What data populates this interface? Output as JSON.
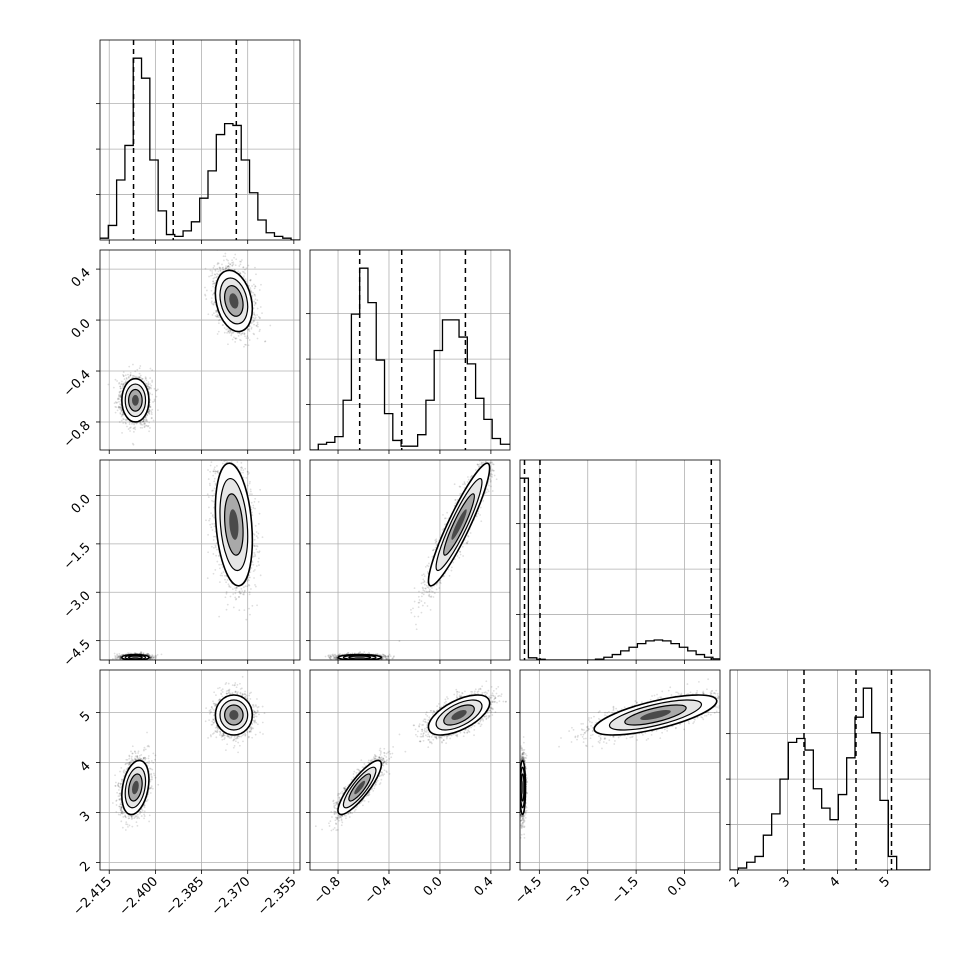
{
  "chart_data": {
    "type": "corner",
    "title": "",
    "parameters": [
      {
        "label": "",
        "range": [
          -2.418,
          -2.353
        ],
        "ticks": [
          -2.415,
          -2.4,
          -2.385,
          -2.37,
          -2.355
        ],
        "tick_labels": [
          "−2.415",
          "−2.400",
          "−2.385",
          "−2.370",
          "−2.355"
        ]
      },
      {
        "label": "",
        "range": [
          -1.02,
          0.55
        ],
        "ticks": [
          -0.8,
          -0.4,
          0.0,
          0.4
        ],
        "tick_labels": [
          "−0.8",
          "−0.4",
          "0.0",
          "0.4"
        ]
      },
      {
        "label": "",
        "range": [
          -5.1,
          1.1
        ],
        "ticks": [
          -4.5,
          -3.0,
          -1.5,
          0.0
        ],
        "tick_labels": [
          "−4.5",
          "−3.0",
          "−1.5",
          "0.0"
        ]
      },
      {
        "label": "",
        "range": [
          1.85,
          5.85
        ],
        "ticks": [
          2,
          3,
          4,
          5
        ],
        "tick_labels": [
          "2",
          "3",
          "4",
          "5"
        ]
      }
    ],
    "quantiles": [
      [
        -2.4071,
        -2.3942,
        -2.3737
      ],
      [
        -0.63,
        -0.3,
        0.2
      ],
      [
        -4.96,
        -4.48,
        0.83
      ],
      [
        3.33,
        4.37,
        5.08
      ]
    ],
    "histograms": [
      {
        "bins": [
          -2.418,
          -2.4153,
          -2.4126,
          -2.4099,
          -2.4072,
          -2.4045,
          -2.4018,
          -2.3991,
          -2.3964,
          -2.3937,
          -2.391,
          -2.3883,
          -2.3856,
          -2.3829,
          -2.3802,
          -2.3775,
          -2.3748,
          -2.3721,
          -2.3694,
          -2.3667,
          -2.364,
          -2.3613,
          -2.3586,
          -2.3559,
          -2.353
        ],
        "counts": [
          0.01,
          0.08,
          0.33,
          0.52,
          1.0,
          0.89,
          0.44,
          0.16,
          0.03,
          0.02,
          0.05,
          0.1,
          0.23,
          0.38,
          0.58,
          0.64,
          0.63,
          0.44,
          0.26,
          0.11,
          0.04,
          0.02,
          0.01,
          0.0
        ]
      },
      {
        "bins": [
          -1.02,
          -0.955,
          -0.89,
          -0.825,
          -0.76,
          -0.695,
          -0.63,
          -0.565,
          -0.5,
          -0.435,
          -0.37,
          -0.305,
          -0.24,
          -0.175,
          -0.11,
          -0.045,
          0.02,
          0.085,
          0.15,
          0.215,
          0.28,
          0.345,
          0.41,
          0.475,
          0.55
        ],
        "counts": [
          0.0,
          0.03,
          0.04,
          0.07,
          0.26,
          0.71,
          0.95,
          0.77,
          0.47,
          0.19,
          0.05,
          0.02,
          0.02,
          0.08,
          0.26,
          0.52,
          0.68,
          0.68,
          0.59,
          0.45,
          0.27,
          0.16,
          0.06,
          0.03
        ]
      },
      {
        "bins": [
          -5.1,
          -4.84,
          -4.58,
          -4.32,
          -4.06,
          -3.8,
          -3.54,
          -3.28,
          -3.02,
          -2.76,
          -2.5,
          -2.24,
          -1.98,
          -1.72,
          -1.46,
          -1.2,
          -0.94,
          -0.68,
          -0.42,
          -0.16,
          0.1,
          0.36,
          0.62,
          0.88,
          1.1
        ],
        "counts": [
          1.0,
          0.012,
          0.004,
          0.0,
          0.0,
          0.0,
          0.0,
          0.0,
          0.0,
          0.005,
          0.015,
          0.03,
          0.05,
          0.07,
          0.09,
          0.105,
          0.11,
          0.105,
          0.09,
          0.07,
          0.05,
          0.03,
          0.015,
          0.006
        ]
      },
      {
        "bins": [
          1.85,
          2.0167,
          2.1833,
          2.35,
          2.5167,
          2.6833,
          2.85,
          3.0167,
          3.1833,
          3.35,
          3.5167,
          3.6833,
          3.85,
          4.0167,
          4.1833,
          4.35,
          4.5167,
          4.6833,
          4.85,
          5.0167,
          5.1833,
          5.35,
          5.5167,
          5.6833,
          5.85
        ],
        "counts": [
          0.0,
          0.01,
          0.04,
          0.07,
          0.18,
          0.29,
          0.47,
          0.66,
          0.68,
          0.62,
          0.42,
          0.32,
          0.26,
          0.39,
          0.58,
          0.79,
          0.94,
          0.71,
          0.36,
          0.07,
          0.0,
          0.0,
          0.0,
          0.0
        ]
      }
    ],
    "modes": [
      {
        "weight": 0.5,
        "mean": [
          -2.4065,
          -0.63,
          -5.02,
          3.5
        ],
        "sd": [
          0.0022,
          0.085,
          0.045,
          0.27
        ],
        "corr": {
          "0-3": 0.3,
          "1-3": 0.85
        }
      },
      {
        "weight": 0.5,
        "mean": [
          -2.3745,
          0.15,
          -0.9,
          4.95
        ],
        "sd": [
          0.003,
          0.12,
          0.95,
          0.2
        ],
        "corr": {
          "0-1": -0.25,
          "0-2": -0.25,
          "1-2": 0.92,
          "1-3": 0.6,
          "2-3": 0.7
        }
      }
    ],
    "grid": true,
    "legend": "none"
  }
}
